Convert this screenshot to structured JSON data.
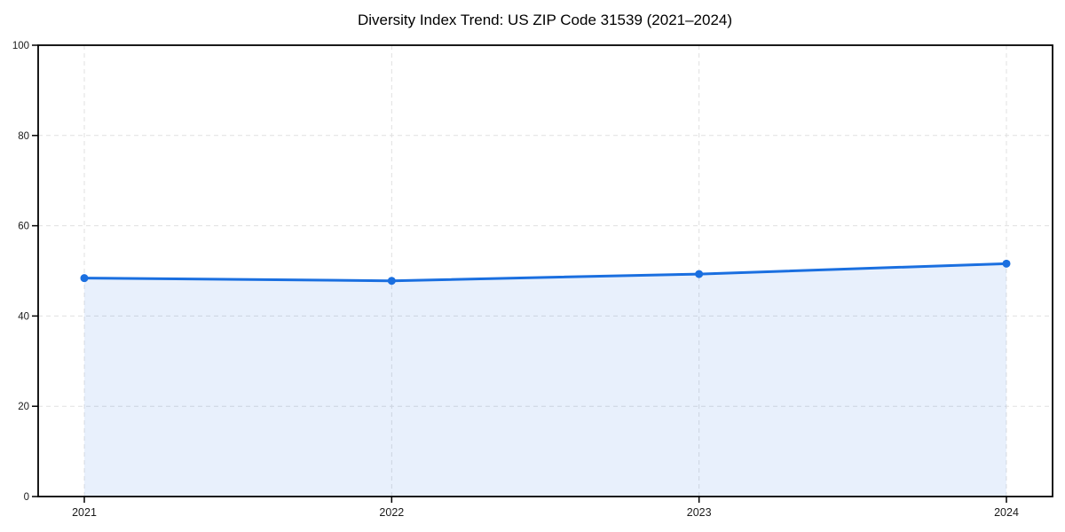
{
  "chart_data": {
    "type": "area",
    "title": "Diversity Index Trend: US ZIP Code 31539 (2021–2024)",
    "categories": [
      "2021",
      "2022",
      "2023",
      "2024"
    ],
    "series": [
      {
        "name": "Diversity Index",
        "values": [
          48.4,
          47.8,
          49.3,
          51.6
        ]
      }
    ],
    "xlabel": "",
    "ylabel": "",
    "ylim": [
      0,
      100
    ],
    "yticks": [
      0,
      20,
      40,
      60,
      80,
      100
    ],
    "grid": true,
    "grid_style": "dashed",
    "legend_position": "none",
    "colors": {
      "line": "#1a6fe0",
      "marker": "#1a6fe0",
      "fill": "#1a6fe0",
      "fill_opacity": 0.1,
      "grid": "#e0e0e0",
      "axis": "#000000",
      "tick": "#000000",
      "background": "#ffffff"
    }
  }
}
